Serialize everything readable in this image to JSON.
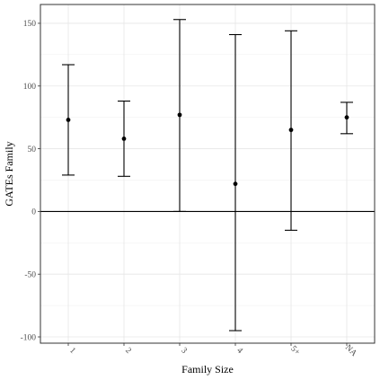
{
  "chart_data": {
    "type": "errorbar",
    "xlabel": "Family Size",
    "ylabel": "GATEs Family",
    "categories": [
      "1",
      "2",
      "3",
      "4",
      "5+",
      "NA"
    ],
    "values": [
      73,
      58,
      77,
      22,
      65,
      75
    ],
    "lower": [
      29,
      28,
      0,
      -95,
      -15,
      62
    ],
    "upper": [
      117,
      88,
      153,
      141,
      144,
      87
    ],
    "ylim": [
      -105,
      165
    ],
    "yticks": [
      -100,
      -50,
      0,
      50,
      100,
      150
    ],
    "reference_line": 0,
    "grid": true,
    "x_tick_rotation": "angled"
  }
}
